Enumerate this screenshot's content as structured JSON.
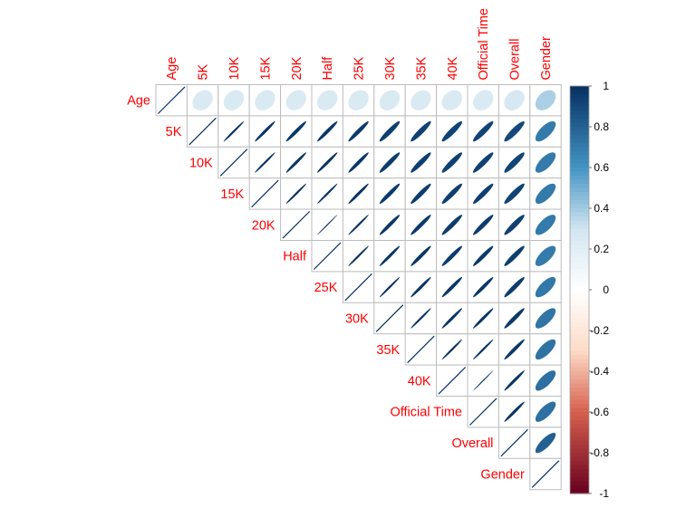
{
  "chart_data": {
    "type": "heatmap",
    "style": "corrplot-ellipse-upper",
    "variables": [
      "Age",
      "5K",
      "10K",
      "15K",
      "20K",
      "Half",
      "25K",
      "30K",
      "35K",
      "40K",
      "Official Time",
      "Overall",
      "Gender"
    ],
    "matrix": [
      [
        1.0,
        0.24,
        0.24,
        0.24,
        0.24,
        0.24,
        0.24,
        0.24,
        0.24,
        0.24,
        0.24,
        0.26,
        0.38
      ],
      [
        0.24,
        1.0,
        0.99,
        0.98,
        0.97,
        0.97,
        0.96,
        0.94,
        0.93,
        0.92,
        0.92,
        0.9,
        0.7
      ],
      [
        0.24,
        0.99,
        1.0,
        0.99,
        0.98,
        0.98,
        0.97,
        0.95,
        0.94,
        0.93,
        0.93,
        0.91,
        0.7
      ],
      [
        0.24,
        0.98,
        0.99,
        1.0,
        0.99,
        0.99,
        0.98,
        0.96,
        0.95,
        0.94,
        0.94,
        0.92,
        0.7
      ],
      [
        0.24,
        0.97,
        0.98,
        0.99,
        1.0,
        1.0,
        0.99,
        0.97,
        0.96,
        0.95,
        0.95,
        0.93,
        0.7
      ],
      [
        0.24,
        0.97,
        0.98,
        0.99,
        1.0,
        1.0,
        0.99,
        0.98,
        0.97,
        0.96,
        0.96,
        0.94,
        0.7
      ],
      [
        0.24,
        0.96,
        0.97,
        0.98,
        0.99,
        0.99,
        1.0,
        0.99,
        0.98,
        0.97,
        0.97,
        0.95,
        0.71
      ],
      [
        0.24,
        0.94,
        0.95,
        0.96,
        0.97,
        0.98,
        0.99,
        1.0,
        0.99,
        0.98,
        0.98,
        0.96,
        0.72
      ],
      [
        0.24,
        0.93,
        0.94,
        0.95,
        0.96,
        0.97,
        0.98,
        0.99,
        1.0,
        0.99,
        0.99,
        0.97,
        0.73
      ],
      [
        0.24,
        0.92,
        0.93,
        0.94,
        0.95,
        0.96,
        0.97,
        0.98,
        0.99,
        1.0,
        1.0,
        0.98,
        0.74
      ],
      [
        0.24,
        0.92,
        0.93,
        0.94,
        0.95,
        0.96,
        0.97,
        0.98,
        0.99,
        1.0,
        1.0,
        0.98,
        0.74
      ],
      [
        0.26,
        0.9,
        0.91,
        0.92,
        0.93,
        0.94,
        0.95,
        0.96,
        0.97,
        0.98,
        0.98,
        1.0,
        0.8
      ],
      [
        0.38,
        0.7,
        0.7,
        0.7,
        0.7,
        0.7,
        0.71,
        0.72,
        0.73,
        0.74,
        0.74,
        0.8,
        1.0
      ]
    ],
    "colorbar": {
      "range": [
        -1,
        1
      ],
      "ticks": [
        "1",
        "0.8",
        "0.6",
        "0.4",
        "0.2",
        "0",
        "-0.2",
        "-0.4",
        "-0.6",
        "-0.8",
        "-1"
      ],
      "colors": {
        "neg_dark": "#67001F",
        "neg_mid": "#D6604D",
        "neg_light": "#FDDBC7",
        "zero": "#FFFFFF",
        "pos_light": "#D1E5F0",
        "pos_mid": "#4393C3",
        "pos_dark": "#053061"
      }
    },
    "label_color": "#FF0000",
    "diagonal": "line",
    "legend_position": "right"
  }
}
